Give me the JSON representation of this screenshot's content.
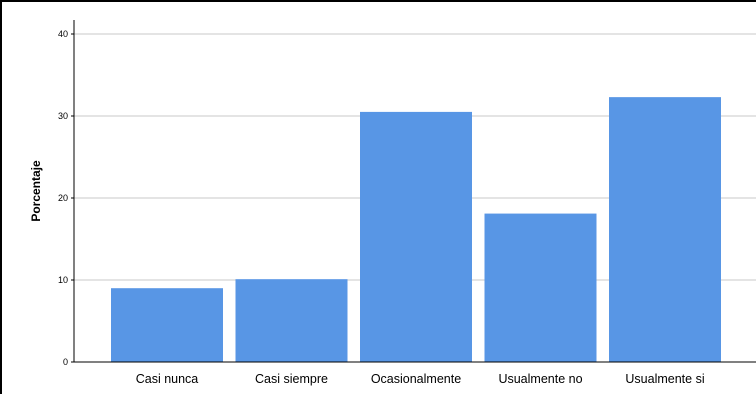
{
  "chart_data": {
    "type": "bar",
    "categories": [
      "Casi nunca",
      "Casi siempre",
      "Ocasionalmente",
      "Usualmente no",
      "Usualmente si"
    ],
    "values": [
      9,
      10.1,
      30.5,
      18.1,
      32.3
    ],
    "xlabel": "",
    "ylabel": "Porcentaje",
    "ylim": [
      0,
      40
    ],
    "yticks": [
      0,
      10,
      20,
      30,
      40
    ],
    "grid": true,
    "bar_color": "#5896e5",
    "grid_color": "#c8c8c8"
  }
}
